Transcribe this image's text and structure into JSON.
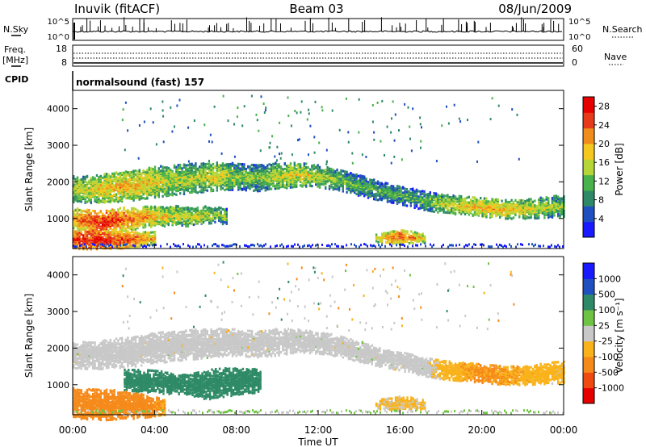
{
  "header": {
    "station": "Inuvik (fitACF)",
    "beam": "Beam 03",
    "date": "08/Jun/2009"
  },
  "left_labels": {
    "nsky": "N.Sky",
    "freq": "Freq.",
    "mhz": "[MHz]",
    "cpid": "CPID"
  },
  "right_labels": {
    "nsearch": "N.Search",
    "nave": "Nave"
  },
  "cpid_text": "normalsound (fast) 157",
  "colors": {
    "power": [
      "#1a1aff",
      "#2050c0",
      "#2e8a66",
      "#49b24a",
      "#b5d636",
      "#f4c81f",
      "#f08c1c",
      "#e63a1a",
      "#e60000"
    ],
    "velocity": [
      "#e60000",
      "#ee4a12",
      "#f58a1a",
      "#f9b21a",
      "#c8c8c8",
      "#6fc342",
      "#2e8a66",
      "#2050c0",
      "#1a1aff"
    ]
  },
  "chart_data": [
    {
      "type": "line",
      "name_panel": "noise",
      "left_axis": {
        "label": "N.Sky",
        "ticks": [
          "10^5",
          "10^0"
        ]
      },
      "right_axis": {
        "label": "N.Search",
        "ticks": [
          "10^5",
          "10^0"
        ]
      }
    },
    {
      "type": "line",
      "name_panel": "frequency",
      "left_axis": {
        "label": "Freq. [MHz]",
        "ticks": [
          "18",
          "8"
        ],
        "ylim": [
          8,
          18
        ]
      },
      "right_axis": {
        "label": "Nave",
        "ticks": [
          "60",
          "0"
        ],
        "ylim": [
          0,
          60
        ]
      }
    },
    {
      "type": "heatmap",
      "name_panel": "power",
      "xlabel": "",
      "ylabel": "Slant Range [km]",
      "y_ticks": [
        "1000",
        "2000",
        "3000",
        "4000"
      ],
      "ylim": [
        180,
        4500
      ],
      "xlim_hours": [
        0,
        24
      ],
      "colorbar": {
        "label": "Power [dB]",
        "ticks": [
          "4",
          "8",
          "12",
          "16",
          "20",
          "24",
          "28"
        ],
        "range": [
          0,
          30
        ]
      },
      "bands": [
        {
          "x": [
            0,
            1,
            2,
            3,
            4,
            5,
            6,
            7,
            8,
            9,
            10,
            11,
            12,
            13,
            14,
            15,
            16,
            17,
            18,
            19,
            20,
            21,
            22,
            23,
            24
          ],
          "center_km": [
            1800,
            1800,
            1850,
            1900,
            2000,
            2050,
            2100,
            2150,
            2150,
            2100,
            2150,
            2200,
            2150,
            2050,
            1900,
            1750,
            1650,
            1500,
            1400,
            1350,
            1300,
            1250,
            1250,
            1300,
            1350
          ],
          "width_km": [
            350,
            380,
            400,
            400,
            420,
            400,
            400,
            380,
            360,
            350,
            350,
            320,
            300,
            280,
            280,
            260,
            260,
            250,
            250,
            250,
            250,
            250,
            260,
            280,
            300
          ],
          "power_db": [
            16,
            18,
            20,
            20,
            18,
            16,
            16,
            18,
            14,
            14,
            16,
            18,
            16,
            14,
            12,
            12,
            12,
            12,
            16,
            18,
            20,
            20,
            18,
            16,
            14
          ]
        },
        {
          "x": [
            0,
            0.5,
            1,
            1.5,
            2,
            2.5,
            3,
            3.5,
            4,
            4.5,
            5,
            5.5,
            6,
            6.5,
            7,
            7.5
          ],
          "center_km": [
            1000,
            950,
            900,
            900,
            950,
            1000,
            1000,
            1050,
            1050,
            1050,
            1100,
            1050,
            1050,
            1100,
            1100,
            1050
          ],
          "width_km": [
            280,
            300,
            300,
            300,
            300,
            300,
            300,
            280,
            280,
            260,
            260,
            260,
            240,
            240,
            220,
            220
          ],
          "power_db": [
            22,
            24,
            26,
            28,
            26,
            24,
            22,
            22,
            20,
            18,
            18,
            16,
            18,
            16,
            14,
            14
          ]
        },
        {
          "x": [
            0,
            0.5,
            1,
            1.5,
            2,
            2.5,
            3,
            3.5,
            4
          ],
          "center_km": [
            430,
            420,
            420,
            420,
            430,
            430,
            440,
            450,
            460
          ],
          "width_km": [
            260,
            260,
            260,
            260,
            250,
            240,
            220,
            200,
            180
          ],
          "power_db": [
            26,
            28,
            28,
            28,
            26,
            26,
            24,
            22,
            20
          ]
        },
        {
          "x": [
            14.8,
            15.4,
            16,
            16.6,
            17.2
          ],
          "center_km": [
            450,
            480,
            500,
            480,
            450
          ],
          "width_km": [
            120,
            160,
            180,
            160,
            120
          ],
          "power_db": [
            18,
            22,
            24,
            22,
            18
          ]
        }
      ]
    },
    {
      "type": "heatmap",
      "name_panel": "velocity",
      "xlabel": "Time UT",
      "ylabel": "Slant Range [km]",
      "x_ticks": [
        "00:00",
        "04:00",
        "08:00",
        "12:00",
        "16:00",
        "20:00",
        "00:00"
      ],
      "y_ticks": [
        "1000",
        "2000",
        "3000",
        "4000"
      ],
      "ylim": [
        180,
        4500
      ],
      "xlim_hours": [
        0,
        24
      ],
      "colorbar": {
        "label": "Velocity [m s⁻¹]",
        "ticks": [
          "1000",
          "500",
          "100",
          "25",
          "-25",
          "-100",
          "-500",
          "-1000"
        ],
        "range": [
          -1000,
          1000
        ]
      },
      "bands": [
        {
          "x": [
            0,
            1,
            2,
            3,
            4,
            5,
            6,
            7,
            8,
            9,
            10,
            11,
            12,
            13,
            14,
            15,
            16,
            17,
            18,
            19,
            20,
            21,
            22,
            23,
            24
          ],
          "center_km": [
            1800,
            1800,
            1850,
            1900,
            2000,
            2050,
            2100,
            2150,
            2150,
            2100,
            2150,
            2200,
            2150,
            2050,
            1900,
            1750,
            1650,
            1500,
            1400,
            1350,
            1300,
            1250,
            1250,
            1300,
            1350
          ],
          "width_km": [
            350,
            380,
            400,
            400,
            420,
            400,
            400,
            380,
            360,
            350,
            350,
            320,
            300,
            280,
            280,
            260,
            260,
            250,
            250,
            250,
            250,
            250,
            260,
            280,
            300
          ],
          "velocity": [
            0,
            0,
            0,
            0,
            0,
            0,
            0,
            0,
            0,
            0,
            0,
            0,
            0,
            0,
            0,
            0,
            0,
            0,
            -50,
            -80,
            -120,
            -100,
            -80,
            -60,
            -40
          ]
        },
        {
          "x": [
            2.5,
            3.5,
            4.5,
            5.5,
            6.5,
            7.5,
            8.5,
            9.2
          ],
          "center_km": [
            1100,
            1100,
            1050,
            1000,
            1000,
            1050,
            1100,
            1100
          ],
          "width_km": [
            300,
            300,
            300,
            260,
            400,
            400,
            350,
            300
          ],
          "velocity": [
            150,
            150,
            150,
            150,
            200,
            200,
            150,
            150
          ]
        },
        {
          "x": [
            0,
            0.5,
            1,
            1.5,
            2,
            2.5,
            3,
            3.5,
            4,
            4.5
          ],
          "center_km": [
            500,
            480,
            460,
            450,
            450,
            440,
            430,
            420,
            400,
            380
          ],
          "width_km": [
            400,
            420,
            420,
            420,
            400,
            380,
            360,
            320,
            260,
            200
          ],
          "velocity": [
            -150,
            -200,
            -200,
            -200,
            -200,
            -180,
            -150,
            -150,
            -120,
            -100
          ]
        },
        {
          "x": [
            14.8,
            15.4,
            16,
            16.6,
            17.2
          ],
          "center_km": [
            450,
            480,
            500,
            480,
            450
          ],
          "width_km": [
            120,
            160,
            180,
            160,
            120
          ],
          "velocity": [
            -30,
            -40,
            -40,
            -40,
            -30
          ]
        }
      ]
    }
  ]
}
